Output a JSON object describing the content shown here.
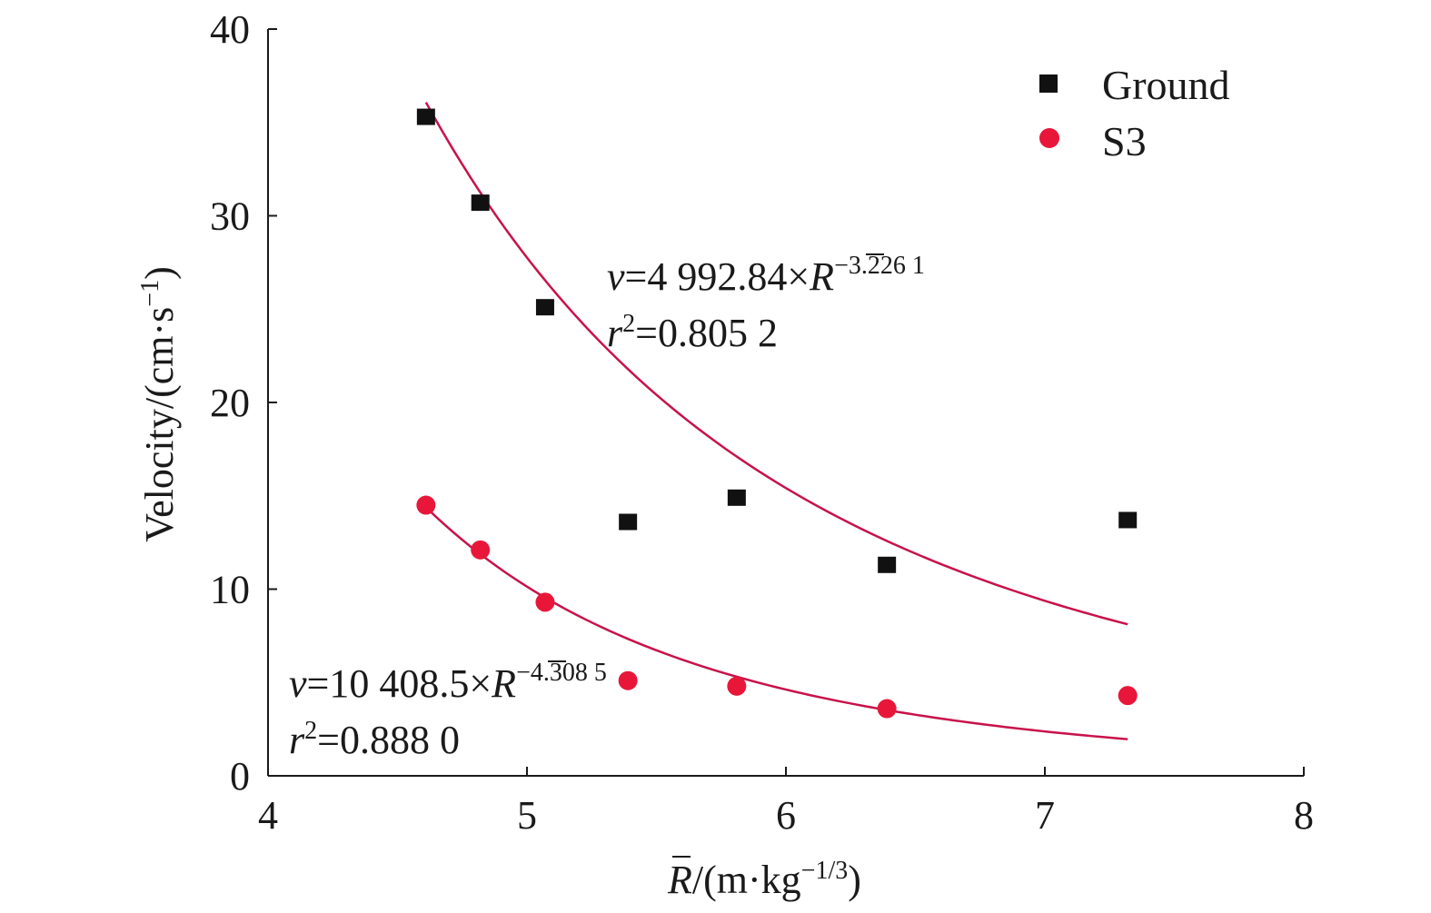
{
  "chart_data": {
    "type": "scatter",
    "xlabel": {
      "symbol": "R",
      "rest": "/(m·kg",
      "exp": "−1/3",
      "close": ")"
    },
    "ylabel": {
      "main": "Velocity/(cm·s",
      "exp": "−1",
      "close": ")"
    },
    "xlim": [
      4,
      8
    ],
    "ylim": [
      0,
      40
    ],
    "xticks": [
      4,
      5,
      6,
      7,
      8
    ],
    "yticks": [
      0,
      10,
      20,
      30,
      40
    ],
    "grid": false,
    "legend_position": "top-right",
    "colors": {
      "ground": "#111111",
      "s3": "#e8173a",
      "fit": "#c8124a"
    },
    "series": [
      {
        "name": "Ground",
        "marker": "square",
        "x": [
          4.61,
          4.82,
          5.07,
          5.39,
          5.81,
          6.39,
          7.32
        ],
        "y": [
          35.3,
          30.7,
          25.1,
          13.6,
          14.9,
          11.3,
          13.7
        ],
        "fit": {
          "a": 4992.84,
          "b": -3.2261,
          "x_range": [
            4.61,
            7.32
          ]
        }
      },
      {
        "name": "S3",
        "marker": "circle",
        "x": [
          4.61,
          4.82,
          5.07,
          5.39,
          5.81,
          6.39,
          7.32
        ],
        "y": [
          14.5,
          12.1,
          9.3,
          5.1,
          4.8,
          3.6,
          4.3
        ],
        "fit": {
          "a": 10408.5,
          "b": -4.3085,
          "x_range": [
            4.61,
            7.32
          ]
        }
      }
    ],
    "annotations": [
      {
        "v": "v",
        "eq": "=4 992.84×",
        "R": "R",
        "exp": "−3.226 1",
        "r": "r",
        "r2": "2",
        "r2val": "=0.805 2"
      },
      {
        "v": "v",
        "eq": "=10 408.5×",
        "R": "R",
        "exp": "−4.308 5",
        "r": "r",
        "r2": "2",
        "r2val": "=0.888 0"
      }
    ]
  }
}
